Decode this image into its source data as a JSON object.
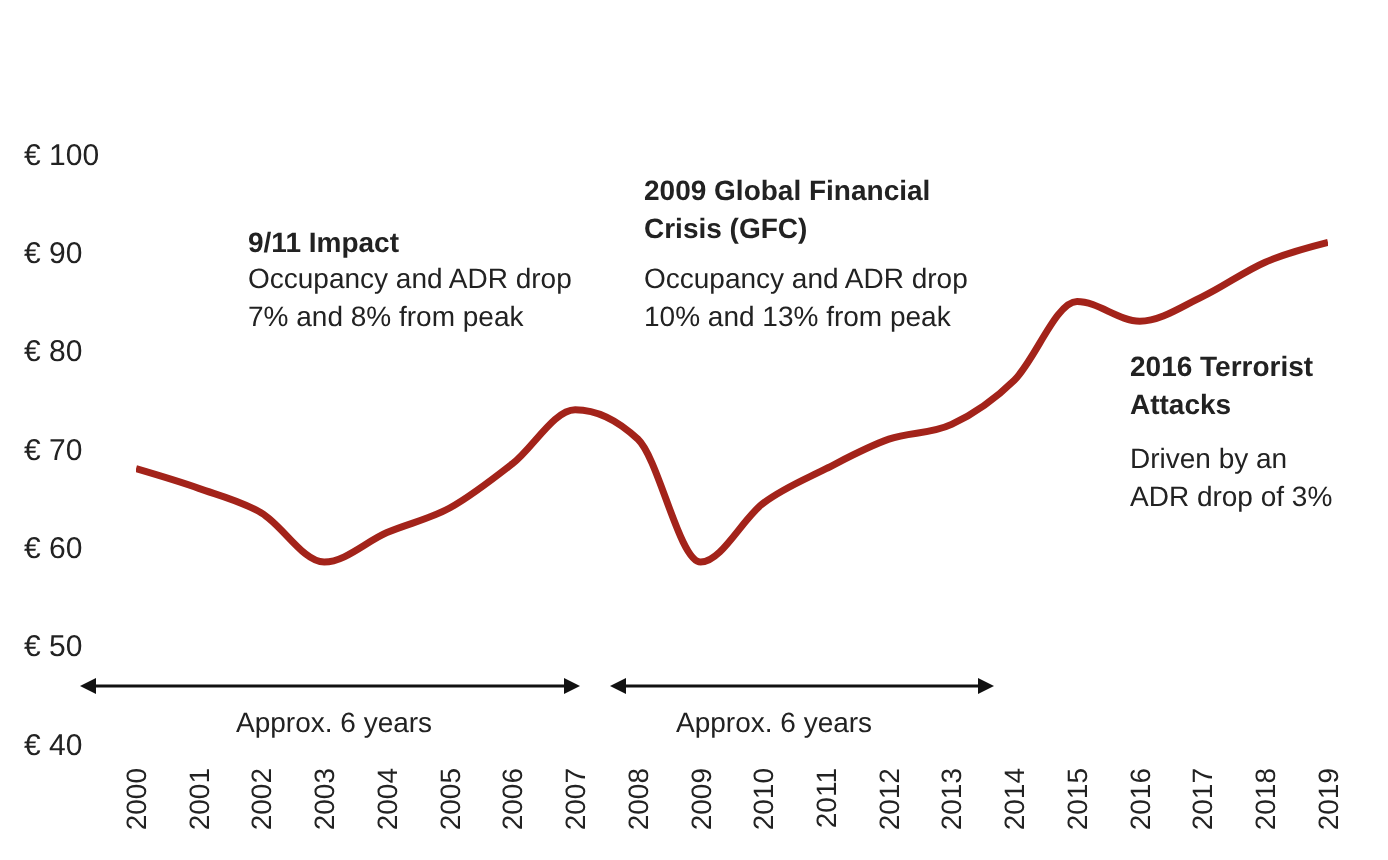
{
  "chart_data": {
    "type": "line",
    "x": [
      2000,
      2001,
      2002,
      2003,
      2004,
      2005,
      2006,
      2007,
      2008,
      2009,
      2010,
      2011,
      2012,
      2013,
      2014,
      2015,
      2016,
      2017,
      2018,
      2019
    ],
    "series": [
      {
        "color": "#a3231a",
        "values": [
          68,
          66,
          63.5,
          58.5,
          61.5,
          64,
          68.5,
          74,
          71,
          58.5,
          64.5,
          68,
          71,
          72.5,
          77,
          85,
          83,
          85.5,
          89,
          91
        ]
      }
    ],
    "xlim": [
      2000,
      2019
    ],
    "xticks": [
      2000,
      2001,
      2002,
      2003,
      2004,
      2005,
      2006,
      2007,
      2008,
      2009,
      2010,
      2011,
      2012,
      2013,
      2014,
      2015,
      2016,
      2017,
      2018,
      2019
    ],
    "ylim": [
      40,
      100
    ],
    "yticks": [
      {
        "value": 40,
        "label": "€ 40"
      },
      {
        "value": 50,
        "label": "€ 50"
      },
      {
        "value": 60,
        "label": "€ 60"
      },
      {
        "value": 70,
        "label": "€ 70"
      },
      {
        "value": 80,
        "label": "€ 80"
      },
      {
        "value": 90,
        "label": "€ 90"
      },
      {
        "value": 100,
        "label": "€ 100"
      }
    ],
    "grid": false,
    "legend": false,
    "marker": "none",
    "line_style": "solid",
    "annotations": [
      "9/11 Impact",
      "Occupancy and ADR drop 7% and 8% from peak",
      "2009 Global Financial Crisis (GFC)",
      "Occupancy and ADR drop 10% and 13% from peak",
      "2016 Terrorist Attacks",
      "Driven by an ADR drop of 3%",
      "Approx. 6 years",
      "Approx. 6 years"
    ]
  }
}
